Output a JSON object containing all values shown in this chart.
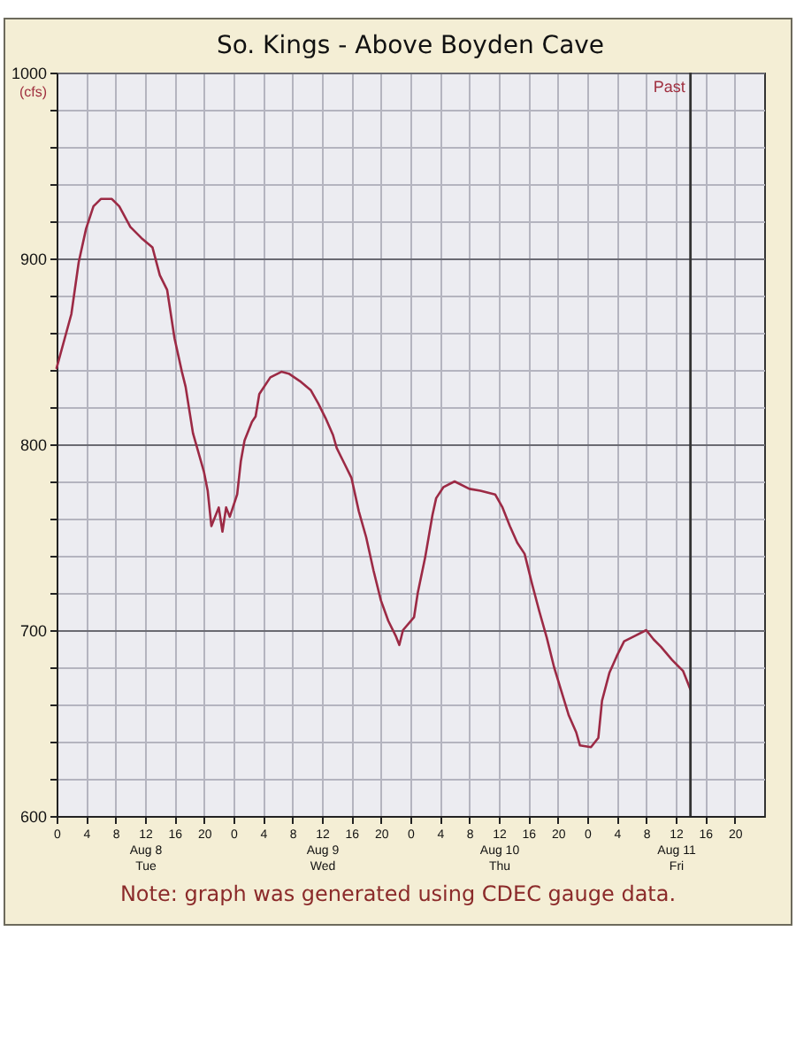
{
  "chart_data": {
    "type": "line",
    "title": "So. Kings - Above Boyden Cave",
    "ylabel": "(cfs)",
    "x": [
      "--08-08T00:00",
      "--08-08T02:00",
      "--08-08T03:00",
      "--08-08T04:00",
      "--08-08T05:00",
      "--08-08T06:00",
      "--08-08T07:30",
      "--08-08T08:30",
      "--08-08T10:00",
      "--08-08T11:30",
      "--08-08T13:00",
      "--08-08T14:00",
      "--08-08T15:00",
      "--08-08T16:00",
      "--08-08T17:00",
      "--08-08T17:30",
      "--08-08T18:30",
      "--08-08T20:00",
      "--08-08T20:30",
      "--08-08T21:00",
      "--08-08T22:00",
      "--08-08T22:30",
      "--08-08T23:00",
      "--08-08T23:30",
      "--08-09T00:30",
      "--08-09T01:00",
      "--08-09T01:30",
      "--08-09T02:30",
      "--08-09T03:00",
      "--08-09T03:30",
      "--08-09T05:00",
      "--08-09T06:30",
      "--08-09T07:30",
      "--08-09T09:00",
      "--08-09T10:30",
      "--08-09T11:30",
      "--08-09T12:30",
      "--08-09T13:30",
      "--08-09T14:00",
      "--08-09T15:00",
      "--08-09T16:00",
      "--08-09T17:00",
      "--08-09T18:00",
      "--08-09T19:00",
      "--08-09T20:00",
      "--08-09T21:00",
      "--08-09T22:00",
      "--08-09T22:30",
      "--08-09T23:00",
      "--08-10T00:30",
      "--08-10T01:00",
      "--08-10T02:00",
      "--08-10T03:00",
      "--08-10T03:30",
      "--08-10T04:30",
      "--08-10T06:00",
      "--08-10T08:00",
      "--08-10T09:30",
      "--08-10T11:30",
      "--08-10T12:30",
      "--08-10T13:30",
      "--08-10T14:30",
      "--08-10T15:30",
      "--08-10T16:30",
      "--08-10T17:30",
      "--08-10T18:30",
      "--08-10T19:30",
      "--08-10T20:30",
      "--08-10T21:30",
      "--08-10T22:30",
      "--08-10T23:00",
      "--08-11T00:30",
      "--08-11T01:30",
      "--08-11T02:00",
      "--08-11T03:00",
      "--08-11T04:00",
      "--08-11T05:00",
      "--08-11T06:30",
      "--08-11T08:00",
      "--08-11T09:00",
      "--08-11T10:00",
      "--08-11T11:30",
      "--08-11T13:00",
      "--08-11T14:00"
    ],
    "series": [
      {
        "color": "#9c2a45",
        "values": [
          841,
          870,
          898,
          916,
          928,
          932,
          932,
          928,
          917,
          911,
          906,
          891,
          883,
          857,
          839,
          831,
          806,
          785,
          775,
          756,
          766,
          753,
          766,
          761,
          773,
          791,
          802,
          812,
          815,
          827,
          836,
          839,
          838,
          834,
          829,
          822,
          814,
          805,
          798,
          790,
          782,
          764,
          750,
          732,
          716,
          705,
          697,
          692,
          700,
          707,
          720,
          739,
          762,
          771,
          777,
          780,
          776,
          775,
          773,
          766,
          756,
          747,
          741,
          725,
          710,
          696,
          680,
          667,
          654,
          645,
          638,
          637,
          642,
          662,
          677,
          686,
          694,
          697,
          700,
          695,
          691,
          684,
          678,
          668
        ]
      }
    ],
    "xlim": [
      "--08-08T00:00",
      "--08-12T00:00"
    ],
    "ylim": [
      600,
      1000
    ],
    "xticks": [
      {
        "value": "--08-08T00:00",
        "label": "0"
      },
      {
        "value": "--08-08T04:00",
        "label": "4"
      },
      {
        "value": "--08-08T08:00",
        "label": "8"
      },
      {
        "value": "--08-08T12:00",
        "label": "12\nAug 8\nTue"
      },
      {
        "value": "--08-08T16:00",
        "label": "16"
      },
      {
        "value": "--08-08T20:00",
        "label": "20"
      },
      {
        "value": "--08-09T00:00",
        "label": "0"
      },
      {
        "value": "--08-09T04:00",
        "label": "4"
      },
      {
        "value": "--08-09T08:00",
        "label": "8"
      },
      {
        "value": "--08-09T12:00",
        "label": "12\nAug 9\nWed"
      },
      {
        "value": "--08-09T16:00",
        "label": "16"
      },
      {
        "value": "--08-09T20:00",
        "label": "20"
      },
      {
        "value": "--08-10T00:00",
        "label": "0"
      },
      {
        "value": "--08-10T04:00",
        "label": "4"
      },
      {
        "value": "--08-10T08:00",
        "label": "8"
      },
      {
        "value": "--08-10T12:00",
        "label": "12\nAug 10\nThu"
      },
      {
        "value": "--08-10T16:00",
        "label": "16"
      },
      {
        "value": "--08-10T20:00",
        "label": "20"
      },
      {
        "value": "--08-11T00:00",
        "label": "0"
      },
      {
        "value": "--08-11T04:00",
        "label": "4"
      },
      {
        "value": "--08-11T08:00",
        "label": "8"
      },
      {
        "value": "--08-11T12:00",
        "label": "12\nAug 11\nFri"
      },
      {
        "value": "--08-11T16:00",
        "label": "16"
      },
      {
        "value": "--08-11T20:00",
        "label": "20"
      }
    ],
    "yticks": [
      600,
      {
        "value": 620,
        "label": null
      },
      {
        "value": 640,
        "label": null
      },
      {
        "value": 660,
        "label": null
      },
      {
        "value": 680,
        "label": null
      },
      700,
      {
        "value": 720,
        "label": null
      },
      {
        "value": 740,
        "label": null
      },
      {
        "value": 760,
        "label": null
      },
      {
        "value": 780,
        "label": null
      },
      800,
      {
        "value": 820,
        "label": null
      },
      {
        "value": 840,
        "label": null
      },
      {
        "value": 860,
        "label": null
      },
      {
        "value": 880,
        "label": null
      },
      900,
      {
        "value": 920,
        "label": null
      },
      {
        "value": 940,
        "label": null
      },
      {
        "value": 960,
        "label": null
      },
      {
        "value": 980,
        "label": null
      },
      1000
    ],
    "grid": true,
    "ref_lines": [
      {
        "axis": "x",
        "value": "--08-11T14:00",
        "label": "Past",
        "color": "#333333"
      }
    ],
    "annotations": [
      "Note: graph was generated using CDEC gauge data."
    ]
  }
}
